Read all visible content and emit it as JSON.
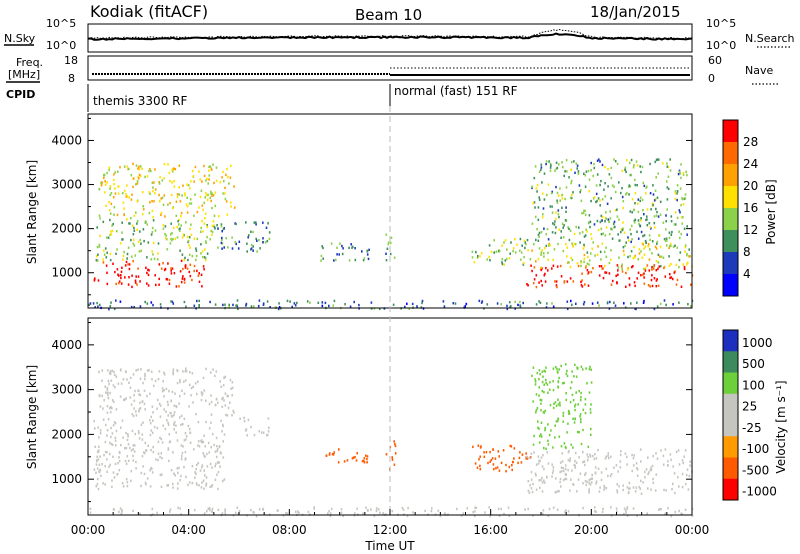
{
  "header": {
    "station": "Kodiak (fitACF)",
    "beam": "Beam 10",
    "date": "18/Jan/2015"
  },
  "top_panels": {
    "nsky_label": "N.Sky",
    "nsky_ticks": [
      "10^5",
      "10^0"
    ],
    "nsearch_label": "N.Search",
    "nsearch_ticks": [
      "10^5",
      "10^0"
    ],
    "freq_label": "Freq.",
    "freq_unit": "[MHz]",
    "freq_ticks": [
      "18",
      "8"
    ],
    "nave_label": "Nave",
    "nave_ticks": [
      "60",
      "0"
    ],
    "cpid_label": "CPID",
    "cpid_segments": [
      {
        "label": "themis 3300 RF",
        "start_hour": 0
      },
      {
        "label": "normal (fast) 151 RF",
        "start_hour": 12
      }
    ]
  },
  "x_axis": {
    "label": "Time UT",
    "ticks": [
      "00:00",
      "04:00",
      "08:00",
      "12:00",
      "16:00",
      "20:00",
      "00:00"
    ],
    "range_hours": [
      0,
      24
    ]
  },
  "chart_data": [
    {
      "type": "heatmap",
      "name": "power",
      "ylabel": "Slant Range [km]",
      "yticks": [
        "4000",
        "3000",
        "2000",
        "1000"
      ],
      "ytick_values": [
        4000,
        3000,
        2000,
        1000
      ],
      "ylim": [
        200,
        4600
      ],
      "colorbar_label": "Power [dB]",
      "colorbar_ticks": [
        "28",
        "24",
        "20",
        "16",
        "12",
        "8",
        "4"
      ],
      "colorbar_levels": [
        30,
        26,
        22,
        18,
        14,
        10,
        6,
        2
      ],
      "colorbar_colors": [
        "#ff0000",
        "#ff6a00",
        "#ffa100",
        "#ffe100",
        "#8bd14a",
        "#3f8f5d",
        "#1c3ab9",
        "#0000ff"
      ],
      "regions": [
        {
          "t": [
            0.2,
            4.6
          ],
          "r": [
            700,
            1300
          ],
          "value": 28
        },
        {
          "t": [
            0.3,
            5.0
          ],
          "r": [
            1300,
            2300
          ],
          "value": 12
        },
        {
          "t": [
            0.4,
            5.8
          ],
          "r": [
            2300,
            3500
          ],
          "value": 16
        },
        {
          "t": [
            5.0,
            7.2
          ],
          "r": [
            1500,
            2200
          ],
          "value": 8
        },
        {
          "t": [
            9.0,
            11.2
          ],
          "r": [
            1300,
            1700
          ],
          "value": 8
        },
        {
          "t": [
            11.8,
            12.2
          ],
          "r": [
            1200,
            1900
          ],
          "value": 10
        },
        {
          "t": [
            15.2,
            17.6
          ],
          "r": [
            1200,
            1800
          ],
          "value": 12
        },
        {
          "t": [
            17.4,
            24.0
          ],
          "r": [
            700,
            1200
          ],
          "value": 28
        },
        {
          "t": [
            17.4,
            24.0
          ],
          "r": [
            1100,
            1700
          ],
          "value": 14
        },
        {
          "t": [
            17.6,
            23.8
          ],
          "r": [
            1700,
            3600
          ],
          "value": 10
        },
        {
          "t": [
            0.0,
            24.0
          ],
          "r": [
            200,
            400
          ],
          "value": 6
        }
      ]
    },
    {
      "type": "heatmap",
      "name": "velocity",
      "ylabel": "Slant Range [km]",
      "yticks": [
        "4000",
        "3000",
        "2000",
        "1000"
      ],
      "ytick_values": [
        4000,
        3000,
        2000,
        1000
      ],
      "ylim": [
        200,
        4600
      ],
      "colorbar_label": "Velocity [m s⁻¹]",
      "colorbar_ticks": [
        "1000",
        "500",
        "100",
        "25",
        "-25",
        "-100",
        "-500",
        "-1000"
      ],
      "colorbar_colors": [
        "#1c2fbf",
        "#3d8a5d",
        "#6dcf3a",
        "#c6c6c0",
        "#c6c6c0",
        "#ff9a00",
        "#ff5a00",
        "#ff0000"
      ],
      "regions": [
        {
          "t": [
            0.2,
            5.4
          ],
          "r": [
            800,
            2400
          ],
          "value": 0
        },
        {
          "t": [
            0.4,
            5.8
          ],
          "r": [
            2400,
            3500
          ],
          "value": 0
        },
        {
          "t": [
            6.0,
            7.2
          ],
          "r": [
            2000,
            2400
          ],
          "value": 0
        },
        {
          "t": [
            9.0,
            11.2
          ],
          "r": [
            1400,
            1700
          ],
          "value": -300
        },
        {
          "t": [
            11.8,
            12.2
          ],
          "r": [
            1200,
            1900
          ],
          "value": -300
        },
        {
          "t": [
            15.2,
            17.6
          ],
          "r": [
            1200,
            1800
          ],
          "value": -400
        },
        {
          "t": [
            17.4,
            24.0
          ],
          "r": [
            700,
            1700
          ],
          "value": 0
        },
        {
          "t": [
            17.6,
            20.0
          ],
          "r": [
            1700,
            3600
          ],
          "value": 100
        },
        {
          "t": [
            0.0,
            24.0
          ],
          "r": [
            200,
            400
          ],
          "value": 0
        }
      ]
    }
  ]
}
